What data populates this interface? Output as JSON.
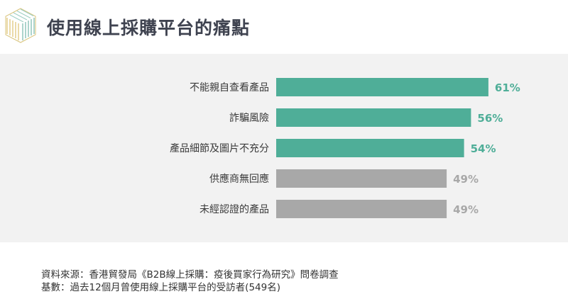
{
  "header": {
    "title": "使用線上採購平台的痛點"
  },
  "colors": {
    "highlight": "#4fae98",
    "muted": "#a8a8a8",
    "panel": "#f2f2f2"
  },
  "chart_data": {
    "type": "bar",
    "orientation": "horizontal",
    "categories": [
      "不能親自查看產品",
      "詐騙風險",
      "產品細節及圖片不充分",
      "供應商無回應",
      "未經認證的產品"
    ],
    "values": [
      61,
      56,
      54,
      49,
      49
    ],
    "value_labels": [
      "61%",
      "56%",
      "54%",
      "49%",
      "49%"
    ],
    "highlighted": [
      true,
      true,
      true,
      false,
      false
    ],
    "title": "使用線上採購平台的痛點",
    "xlabel": "",
    "ylabel": "",
    "xlim": [
      0,
      100
    ],
    "grid": false,
    "legend": "none"
  },
  "footer": {
    "source": "資料來源：香港貿發局《B2B線上採購：疫後買家行為研究》問卷調查",
    "base": "基數：過去12個月曾使用線上採購平台的受訪者(549名)"
  }
}
